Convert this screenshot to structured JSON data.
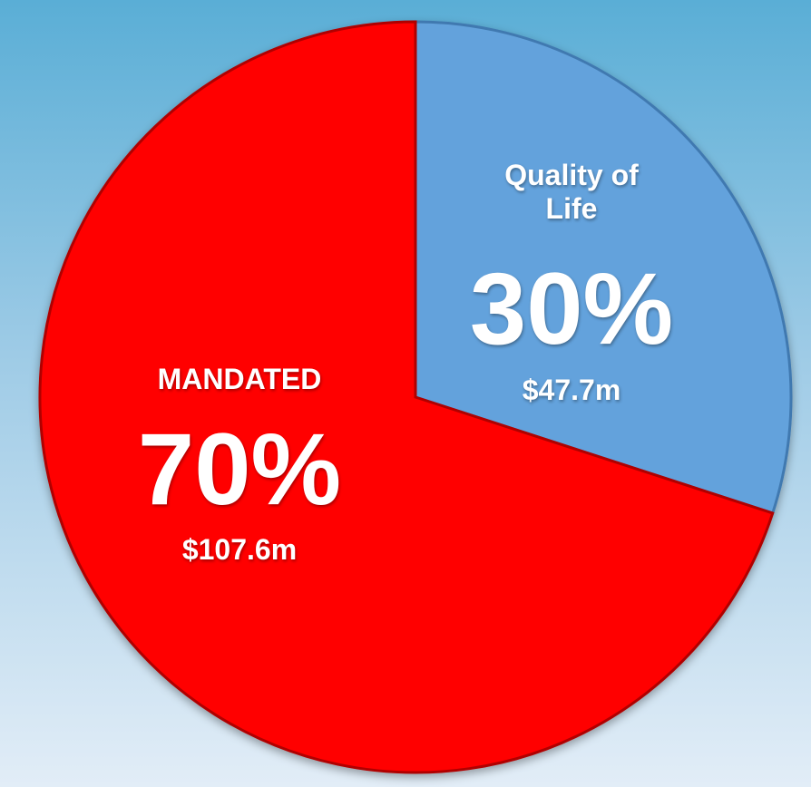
{
  "chart_data": {
    "type": "pie",
    "categories": [
      "Quality of Life",
      "MANDATED"
    ],
    "values": [
      30,
      70
    ],
    "value_labels": [
      "30%",
      "70%"
    ],
    "amount_labels": [
      "$47.7m",
      "$107.6m"
    ],
    "colors": [
      "#64a2dc",
      "#ff0000"
    ]
  }
}
